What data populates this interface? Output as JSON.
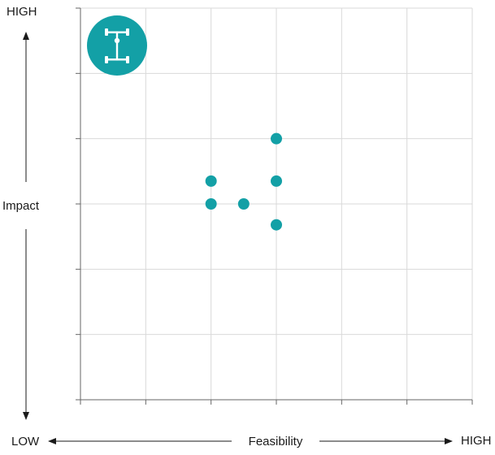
{
  "chart_data": {
    "type": "scatter",
    "title": "",
    "xlabel": "Feasibility",
    "ylabel": "Impact",
    "x_low_label": "LOW",
    "x_high_label": "HIGH",
    "y_high_label": "HIGH",
    "xlim": [
      0,
      6
    ],
    "ylim": [
      0,
      6
    ],
    "grid": true,
    "point_color": "#13a0a6",
    "grid_color": "#d9d9d9",
    "axis_color": "#666666",
    "icon": {
      "name": "drivetrain-axle-icon",
      "bg_color": "#13a0a6"
    },
    "points": [
      {
        "x": 3.0,
        "y": 4.0
      },
      {
        "x": 2.0,
        "y": 3.35
      },
      {
        "x": 3.0,
        "y": 3.35
      },
      {
        "x": 2.0,
        "y": 3.0
      },
      {
        "x": 2.5,
        "y": 3.0
      },
      {
        "x": 3.0,
        "y": 2.68
      }
    ]
  }
}
